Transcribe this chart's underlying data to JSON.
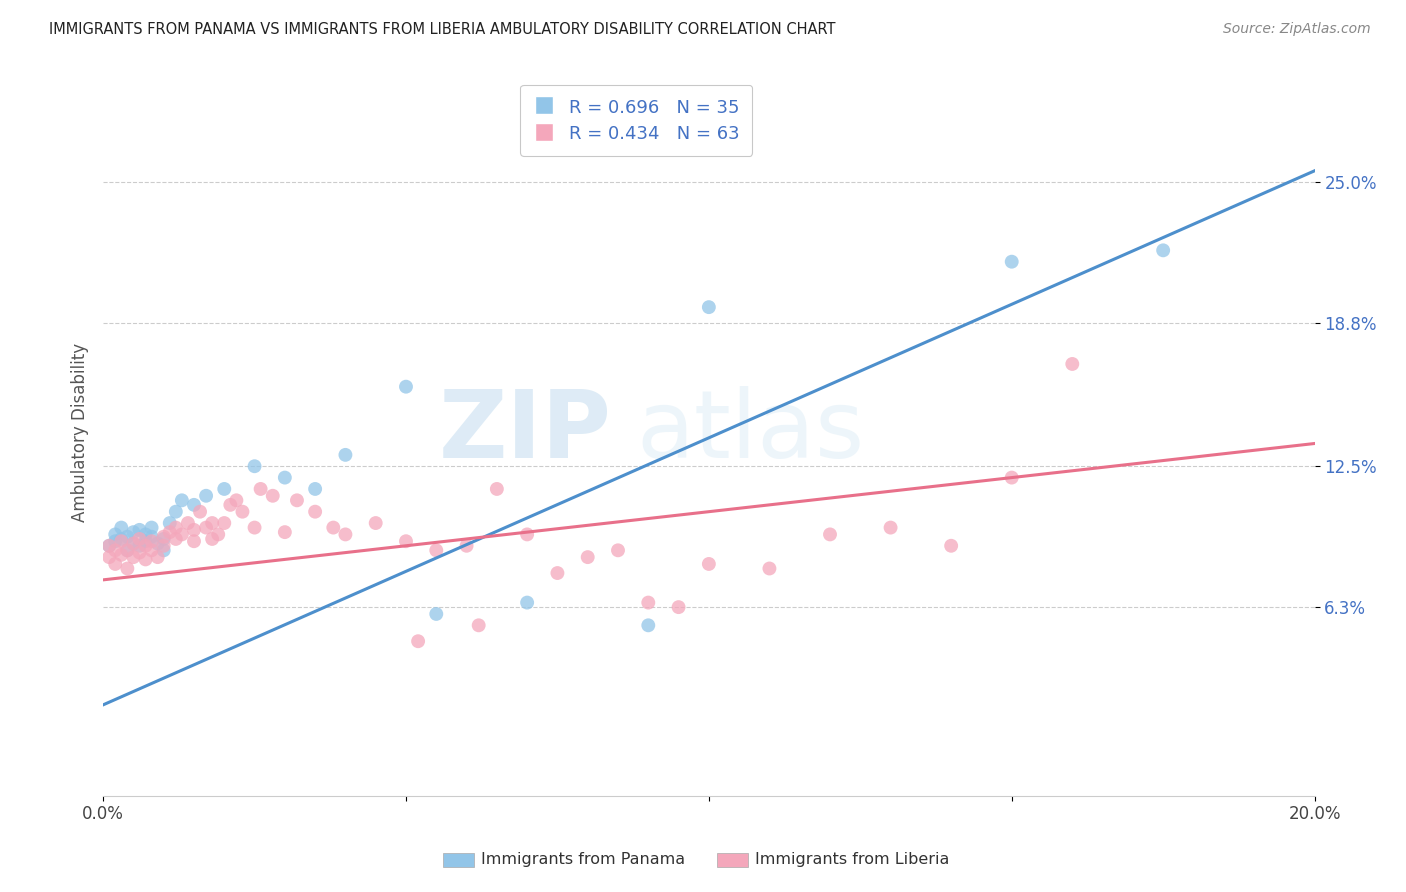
{
  "title": "IMMIGRANTS FROM PANAMA VS IMMIGRANTS FROM LIBERIA AMBULATORY DISABILITY CORRELATION CHART",
  "source": "Source: ZipAtlas.com",
  "ylabel": "Ambulatory Disability",
  "x_min": 0.0,
  "x_max": 0.2,
  "y_min": -0.02,
  "y_max": 0.3,
  "y_tick_labels_right": [
    "6.3%",
    "12.5%",
    "18.8%",
    "25.0%"
  ],
  "y_tick_vals_right": [
    0.063,
    0.125,
    0.188,
    0.25
  ],
  "legend_label1": "Immigrants from Panama",
  "legend_label2": "Immigrants from Liberia",
  "legend_R1": "R = 0.696",
  "legend_N1": "N = 35",
  "legend_R2": "R = 0.434",
  "legend_N2": "N = 63",
  "color_blue": "#92c5e8",
  "color_pink": "#f4a7bb",
  "color_blue_line": "#4d8fcc",
  "color_pink_line": "#e8708a",
  "color_blue_dark": "#4472c4",
  "watermark_zip": "ZIP",
  "watermark_atlas": "atlas",
  "panama_x": [
    0.001,
    0.002,
    0.002,
    0.003,
    0.003,
    0.004,
    0.004,
    0.005,
    0.005,
    0.006,
    0.006,
    0.007,
    0.007,
    0.008,
    0.008,
    0.009,
    0.01,
    0.01,
    0.011,
    0.012,
    0.013,
    0.015,
    0.017,
    0.02,
    0.025,
    0.03,
    0.035,
    0.04,
    0.05,
    0.055,
    0.07,
    0.09,
    0.1,
    0.15,
    0.175
  ],
  "panama_y": [
    0.09,
    0.092,
    0.095,
    0.093,
    0.098,
    0.088,
    0.094,
    0.091,
    0.096,
    0.09,
    0.097,
    0.092,
    0.095,
    0.094,
    0.098,
    0.091,
    0.093,
    0.088,
    0.1,
    0.105,
    0.11,
    0.108,
    0.112,
    0.115,
    0.125,
    0.12,
    0.115,
    0.13,
    0.16,
    0.06,
    0.065,
    0.055,
    0.195,
    0.215,
    0.22
  ],
  "liberia_x": [
    0.001,
    0.001,
    0.002,
    0.002,
    0.003,
    0.003,
    0.004,
    0.004,
    0.005,
    0.005,
    0.006,
    0.006,
    0.007,
    0.007,
    0.008,
    0.008,
    0.009,
    0.01,
    0.01,
    0.011,
    0.012,
    0.012,
    0.013,
    0.014,
    0.015,
    0.015,
    0.016,
    0.017,
    0.018,
    0.018,
    0.019,
    0.02,
    0.021,
    0.022,
    0.023,
    0.025,
    0.026,
    0.028,
    0.03,
    0.032,
    0.035,
    0.038,
    0.04,
    0.045,
    0.05,
    0.055,
    0.06,
    0.065,
    0.07,
    0.08,
    0.085,
    0.09,
    0.095,
    0.1,
    0.11,
    0.12,
    0.13,
    0.14,
    0.15,
    0.16,
    0.052,
    0.062,
    0.075
  ],
  "liberia_y": [
    0.085,
    0.09,
    0.082,
    0.088,
    0.086,
    0.092,
    0.08,
    0.088,
    0.091,
    0.085,
    0.093,
    0.087,
    0.09,
    0.084,
    0.092,
    0.088,
    0.085,
    0.094,
    0.09,
    0.096,
    0.093,
    0.098,
    0.095,
    0.1,
    0.092,
    0.097,
    0.105,
    0.098,
    0.093,
    0.1,
    0.095,
    0.1,
    0.108,
    0.11,
    0.105,
    0.098,
    0.115,
    0.112,
    0.096,
    0.11,
    0.105,
    0.098,
    0.095,
    0.1,
    0.092,
    0.088,
    0.09,
    0.115,
    0.095,
    0.085,
    0.088,
    0.065,
    0.063,
    0.082,
    0.08,
    0.095,
    0.098,
    0.09,
    0.12,
    0.17,
    0.048,
    0.055,
    0.078
  ]
}
